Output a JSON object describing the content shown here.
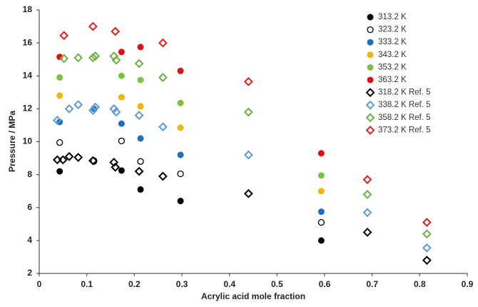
{
  "chart_data": {
    "type": "scatter",
    "xlabel": "Acrylic acid mole fraction",
    "ylabel": "Pressure / MPa",
    "xlim": [
      0,
      0.9
    ],
    "xticks": [
      0,
      0.1,
      0.2,
      0.3,
      0.4,
      0.5,
      0.6,
      0.7,
      0.8,
      0.9
    ],
    "ylim": [
      2,
      18
    ],
    "yticks": [
      2,
      4,
      6,
      8,
      10,
      12,
      14,
      16,
      18
    ],
    "grid": false,
    "legend": "upper right",
    "series": [
      {
        "name": "313.2 K",
        "color": "#000000",
        "marker": "circle",
        "x": [
          0.043,
          0.115,
          0.173,
          0.213,
          0.297,
          0.593
        ],
        "values": [
          8.2,
          8.8,
          8.25,
          7.1,
          6.4,
          4.0
        ]
      },
      {
        "name": "323.2 K",
        "color": "#000000",
        "marker": "circle-open",
        "x": [
          0.043,
          0.115,
          0.173,
          0.213,
          0.297,
          0.593
        ],
        "values": [
          9.95,
          8.85,
          10.05,
          8.8,
          8.05,
          5.1
        ]
      },
      {
        "name": "333.2 K",
        "color": "#1f6fc0",
        "marker": "circle",
        "x": [
          0.043,
          0.115,
          0.173,
          0.213,
          0.297,
          0.593
        ],
        "values": [
          11.2,
          12.0,
          11.1,
          10.2,
          9.2,
          5.75
        ]
      },
      {
        "name": "343.2 K",
        "color": "#f5b400",
        "marker": "circle",
        "x": [
          0.043,
          0.173,
          0.213,
          0.297,
          0.593
        ],
        "values": [
          12.8,
          12.7,
          12.15,
          10.85,
          7.0
        ]
      },
      {
        "name": "353.2 K",
        "color": "#7cc242",
        "marker": "circle",
        "x": [
          0.043,
          0.173,
          0.213,
          0.297,
          0.593
        ],
        "values": [
          13.9,
          14.0,
          13.75,
          12.35,
          7.95
        ]
      },
      {
        "name": "363.2 K",
        "color": "#e01010",
        "marker": "circle",
        "x": [
          0.043,
          0.173,
          0.213,
          0.297,
          0.593
        ],
        "values": [
          15.15,
          15.45,
          15.75,
          14.3,
          9.3
        ]
      },
      {
        "name": "318.2 K Ref. 5",
        "color": "#000000",
        "marker": "diamond",
        "x": [
          0.038,
          0.05,
          0.063,
          0.082,
          0.113,
          0.157,
          0.16,
          0.21,
          0.26,
          0.44,
          0.69,
          0.815
        ],
        "values": [
          8.9,
          8.9,
          9.1,
          9.05,
          8.85,
          8.75,
          8.45,
          8.2,
          7.9,
          6.85,
          4.5,
          2.8
        ]
      },
      {
        "name": "338.2 K Ref. 5",
        "color": "#5b9bd5",
        "marker": "diamond",
        "x": [
          0.038,
          0.063,
          0.082,
          0.113,
          0.118,
          0.157,
          0.162,
          0.21,
          0.26,
          0.44,
          0.69,
          0.815
        ],
        "values": [
          11.3,
          12.0,
          12.25,
          11.9,
          12.1,
          12.0,
          11.8,
          11.6,
          10.9,
          9.2,
          5.7,
          3.55
        ]
      },
      {
        "name": "358.2 K Ref. 5",
        "color": "#70ad47",
        "marker": "diamond",
        "x": [
          0.052,
          0.082,
          0.113,
          0.118,
          0.157,
          0.162,
          0.21,
          0.26,
          0.44,
          0.69,
          0.815
        ],
        "values": [
          15.05,
          15.1,
          15.1,
          15.2,
          15.2,
          14.95,
          14.75,
          13.9,
          11.8,
          6.8,
          4.4
        ]
      },
      {
        "name": "373.2 K Ref. 5",
        "color": "#e02020",
        "marker": "diamond",
        "x": [
          0.052,
          0.113,
          0.16,
          0.26,
          0.44,
          0.69,
          0.815
        ],
        "values": [
          16.45,
          17.0,
          16.7,
          16.0,
          13.65,
          7.7,
          5.1
        ]
      }
    ]
  }
}
